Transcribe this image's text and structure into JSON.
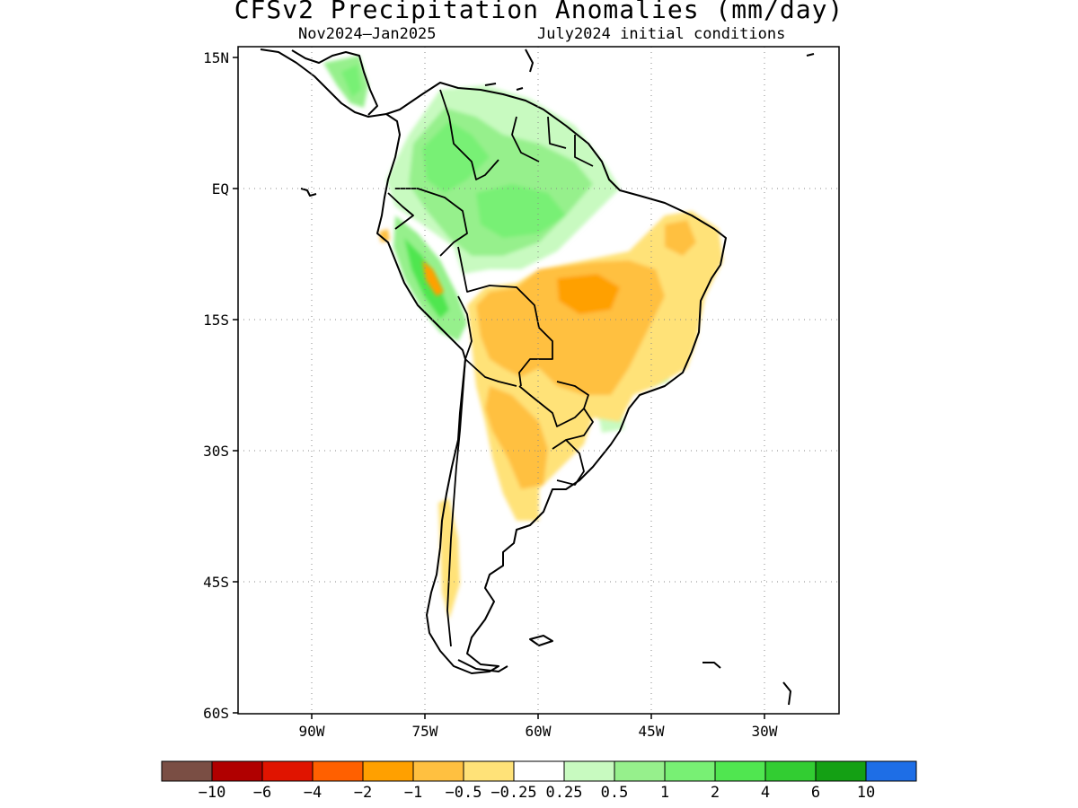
{
  "title": "CFSv2 Precipitation Anomalies (mm/day)",
  "subtitle_left": "Nov2024–Jan2025",
  "subtitle_right": "July2024 initial conditions",
  "map": {
    "lon_range": [
      -102,
      -22
    ],
    "lat_range": [
      -60,
      15
    ],
    "lat_ticks": [
      {
        "value": 15,
        "label": "15N"
      },
      {
        "value": 0,
        "label": "EQ"
      },
      {
        "value": -15,
        "label": "15S"
      },
      {
        "value": -30,
        "label": "30S"
      },
      {
        "value": -45,
        "label": "45S"
      },
      {
        "value": -60,
        "label": "60S"
      }
    ],
    "lon_ticks": [
      {
        "value": -90,
        "label": "90W"
      },
      {
        "value": -75,
        "label": "75W"
      },
      {
        "value": -60,
        "label": "60W"
      },
      {
        "value": -45,
        "label": "45W"
      },
      {
        "value": -30,
        "label": "30W"
      }
    ],
    "grid": "dotted"
  },
  "colorbar": {
    "colors": [
      "#7a4e44",
      "#b00000",
      "#e01400",
      "#ff6000",
      "#ffa000",
      "#ffc040",
      "#ffe278",
      "#ffffff",
      "#c8fac0",
      "#96f08c",
      "#78f074",
      "#50e650",
      "#32cd32",
      "#14a014",
      "#1e6ee6"
    ],
    "labels": [
      "−10",
      "−6",
      "−4",
      "−2",
      "−1",
      "−0.5",
      "−0.25",
      "0.25",
      "0.5",
      "1",
      "2",
      "4",
      "6",
      "10"
    ]
  }
}
